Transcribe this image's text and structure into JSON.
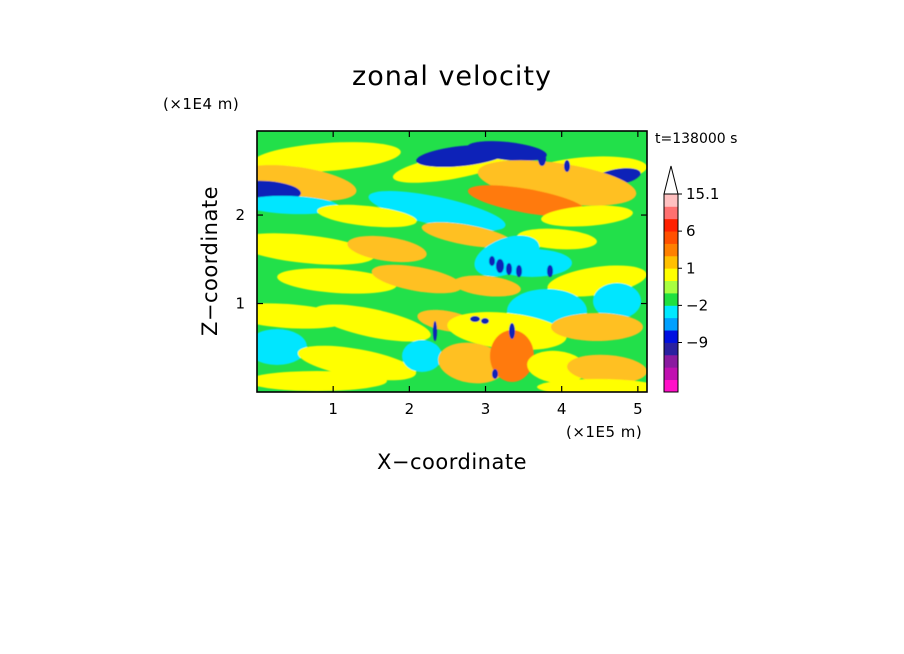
{
  "chart_data": {
    "type": "heatmap",
    "title": "zonal velocity",
    "xlabel": "X−coordinate",
    "ylabel": "Z−coordinate",
    "x_units": "(×1E5 m)",
    "y_units": "(×1E4 m)",
    "time_label": "t=138000 s",
    "xlim": [
      0,
      5.12
    ],
    "ylim": [
      0,
      2.95
    ],
    "x_ticks": [
      {
        "value": 1,
        "label": "1"
      },
      {
        "value": 2,
        "label": "2"
      },
      {
        "value": 3,
        "label": "3"
      },
      {
        "value": 4,
        "label": "4"
      },
      {
        "value": 5,
        "label": "5"
      }
    ],
    "y_ticks": [
      {
        "value": 1,
        "label": "1"
      },
      {
        "value": 2,
        "label": "2"
      }
    ],
    "colorbar": {
      "bands": [
        {
          "color": "#ff10c8"
        },
        {
          "color": "#c010b0"
        },
        {
          "color": "#8a1aa0"
        },
        {
          "color": "#2a20a0"
        },
        {
          "color": "#0010e0"
        },
        {
          "color": "#00a0ff"
        },
        {
          "color": "#00e8ff"
        },
        {
          "color": "#20e040"
        },
        {
          "color": "#a8ff40"
        },
        {
          "color": "#ffff00"
        },
        {
          "color": "#ffc000"
        },
        {
          "color": "#ff8000"
        },
        {
          "color": "#ff5000"
        },
        {
          "color": "#ff2000"
        },
        {
          "color": "#ff7070"
        },
        {
          "color": "#ffc0c0"
        }
      ],
      "labels": [
        {
          "text": "15.1",
          "band": 15
        },
        {
          "text": "6",
          "band": 12
        },
        {
          "text": "1",
          "band": 9
        },
        {
          "text": "−2",
          "band": 6
        },
        {
          "text": "−9",
          "band": 3
        }
      ]
    },
    "palette": {
      "strong_negative": "#0a22b8",
      "negative": "#00e6ff",
      "near_zero": "#22e04a",
      "weak_positive": "#ffff00",
      "positive": "#ffc020",
      "strong_positive": "#ff7a10"
    }
  }
}
